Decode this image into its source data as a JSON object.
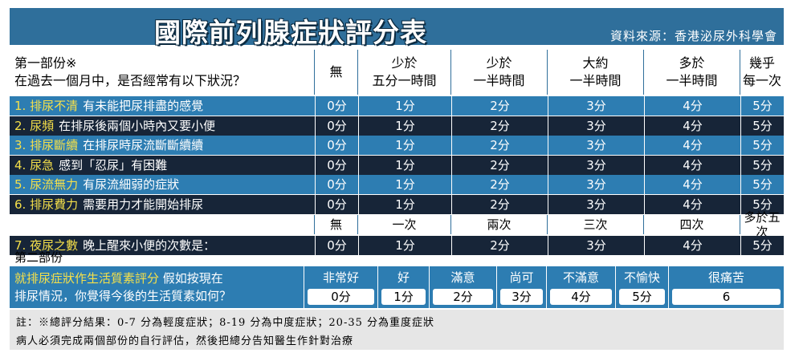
{
  "header": {
    "title": "國際前列腺症狀評分表",
    "source": "資料來源：香港泌尿外科學會"
  },
  "part1": {
    "title": "第一部份※",
    "question": "在過去一個月中，是否經常有以下狀況？",
    "columns": [
      "無",
      "少於\n五分一時間",
      "少於\n一半時間",
      "大約\n一半時間",
      "多於\n一半時間",
      "幾乎\n每一次"
    ],
    "rows": [
      {
        "key": "1. 排尿不清",
        "desc": "有未能把尿排盡的感覺",
        "scores": [
          "0分",
          "1分",
          "2分",
          "3分",
          "4分",
          "5分"
        ]
      },
      {
        "key": "2. 尿頻",
        "desc": "在排尿後兩個小時內又要小便",
        "scores": [
          "0分",
          "1分",
          "2分",
          "3分",
          "4分",
          "5分"
        ]
      },
      {
        "key": "3. 排尿斷續",
        "desc": "在排尿時尿流斷斷續續",
        "scores": [
          "0分",
          "1分",
          "2分",
          "3分",
          "4分",
          "5分"
        ]
      },
      {
        "key": "4. 尿急",
        "desc": "感到「忍尿」有困難",
        "scores": [
          "0分",
          "1分",
          "2分",
          "3分",
          "4分",
          "5分"
        ]
      },
      {
        "key": "5. 尿流無力",
        "desc": "有尿流細弱的症狀",
        "scores": [
          "0分",
          "1分",
          "2分",
          "3分",
          "4分",
          "5分"
        ]
      },
      {
        "key": "6. 排尿費力",
        "desc": "需要用力才能開始排尿",
        "scores": [
          "0分",
          "1分",
          "2分",
          "3分",
          "4分",
          "5分"
        ]
      }
    ],
    "nocturia_columns": [
      "無",
      "一次",
      "兩次",
      "三次",
      "四次",
      "多於五次"
    ],
    "nocturia": {
      "key": "7. 夜尿之數",
      "desc": "晚上醒來小便的次數是：",
      "scores": [
        "0分",
        "1分",
        "2分",
        "3分",
        "4分",
        "5分"
      ]
    }
  },
  "part2": {
    "title": "第二部份",
    "label_hl": "就排尿症狀作生活質素評分",
    "label_rest1": "假如按現在",
    "label_rest2": "排尿情況，你覺得今後的生活質素如何？",
    "options": [
      {
        "label": "非常好",
        "score": "0分"
      },
      {
        "label": "好",
        "score": "1分"
      },
      {
        "label": "滿意",
        "score": "2分"
      },
      {
        "label": "尚可",
        "score": "3分"
      },
      {
        "label": "不滿意",
        "score": "4分"
      },
      {
        "label": "不愉快",
        "score": "5分"
      },
      {
        "label": "很痛苦",
        "score": "6"
      }
    ]
  },
  "note": {
    "line1": "註：※總評分結果：0-7 分為輕度症狀；8-19 分為中度症狀；20-35 分為重度症狀",
    "line2": "病人必須完成兩個部份的自行評估，然後把總分告知醫生作針對治療"
  }
}
